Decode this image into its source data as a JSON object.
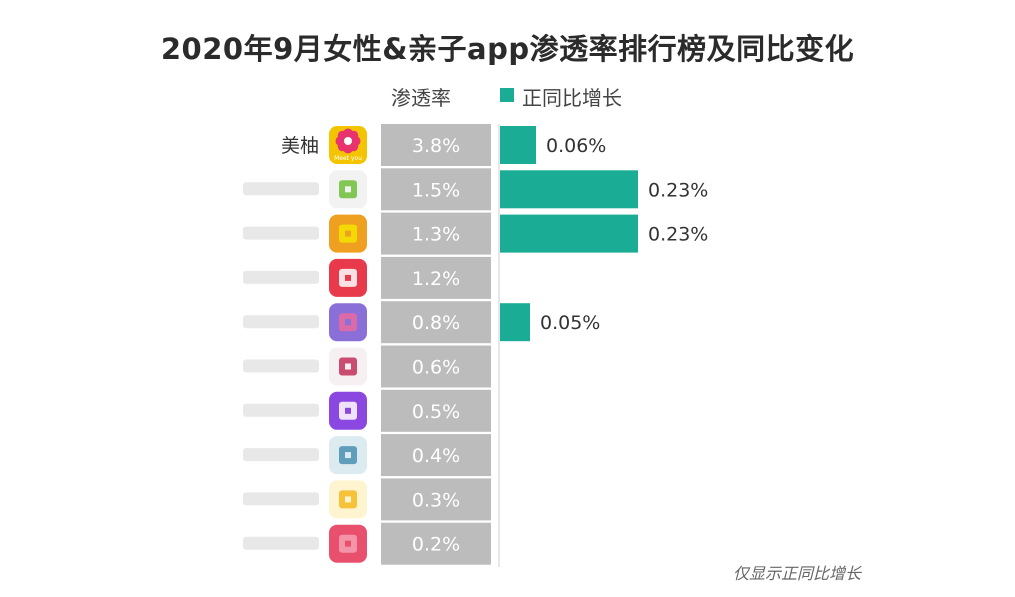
{
  "chart_data": {
    "type": "bar",
    "title": "2020年9月女性&亲子app渗透率排行榜及同比变化",
    "legend": [
      "渗透率",
      "正同比增长"
    ],
    "categories": [
      "美柚",
      "",
      "",
      "",
      "",
      "",
      "",
      "",
      "",
      ""
    ],
    "penetration_labels": [
      "3.8%",
      "1.5%",
      "1.3%",
      "1.2%",
      "0.8%",
      "0.6%",
      "0.5%",
      "0.4%",
      "0.3%",
      "0.2%"
    ],
    "series": [
      {
        "name": "正同比增长",
        "values": [
          0.06,
          0.23,
          0.23,
          null,
          0.05,
          null,
          null,
          null,
          null,
          null
        ],
        "labels": [
          "0.06%",
          "0.23%",
          "0.23%",
          "",
          "0.05%",
          "",
          "",
          "",
          "",
          ""
        ]
      }
    ],
    "colors": {
      "growth_bar": "#1aac94",
      "penetration_cell": "#bcbcbc",
      "axis_line": "#cfcfcf"
    },
    "app_icons": [
      {
        "name": "flower-icon",
        "color": "#f5c400",
        "accent": "#e8336e",
        "caption": "Meet you"
      },
      {
        "name": "app-icon",
        "color": "#f2f2f2",
        "accent": "#6fbf3a"
      },
      {
        "name": "app-icon",
        "color": "#f0a020",
        "accent": "#f5e400"
      },
      {
        "name": "app-icon",
        "color": "#e83a4a",
        "accent": "#ffffff"
      },
      {
        "name": "app-icon",
        "color": "#8a6fd8",
        "accent": "#e86aa0"
      },
      {
        "name": "app-icon",
        "color": "#f6f0f2",
        "accent": "#c2305a"
      },
      {
        "name": "app-icon",
        "color": "#8a48e0",
        "accent": "#ffffff"
      },
      {
        "name": "app-icon",
        "color": "#dcebf0",
        "accent": "#4a8fb0"
      },
      {
        "name": "app-icon",
        "color": "#fff4d0",
        "accent": "#f5b820"
      },
      {
        "name": "app-icon",
        "color": "#e8506e",
        "accent": "#f6a0b4"
      }
    ],
    "note": "仅显示正同比增长"
  }
}
